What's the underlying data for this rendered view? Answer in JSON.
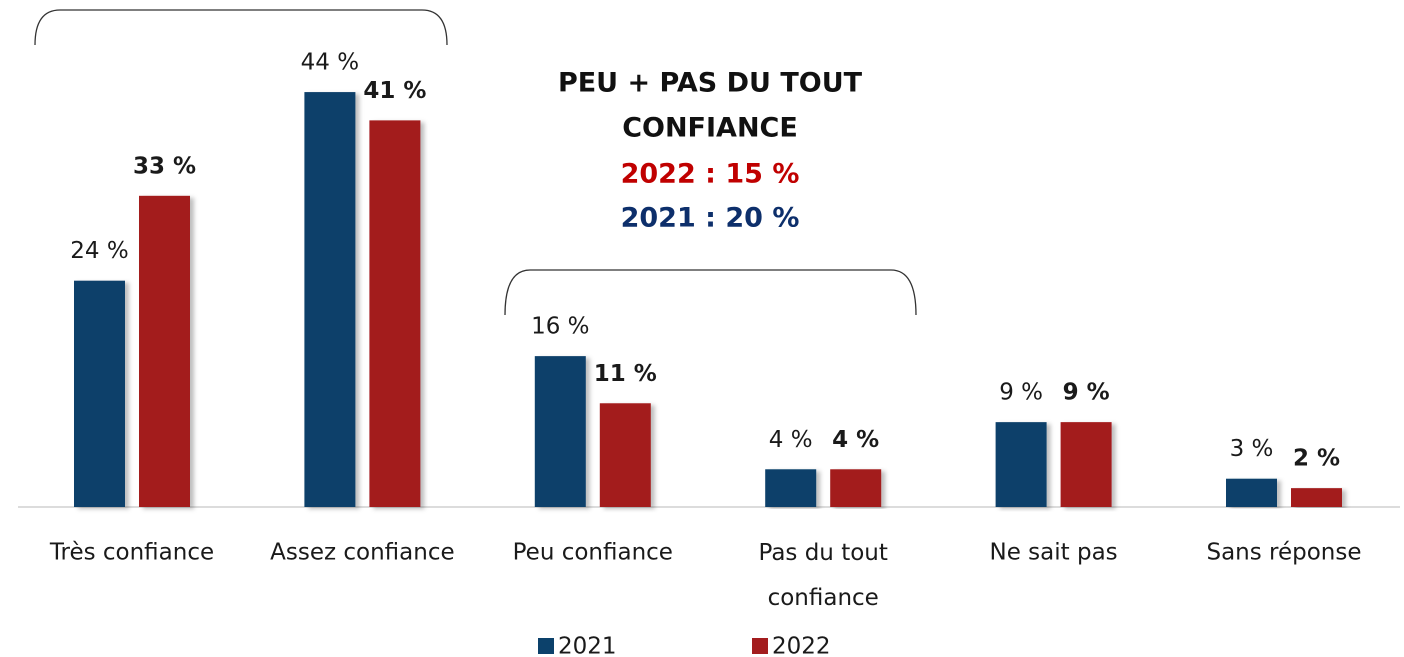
{
  "chart_data": {
    "type": "bar",
    "categories": [
      "Très confiance",
      "Assez confiance",
      "Peu confiance",
      "Pas du tout confiance",
      "Ne sait pas",
      "Sans réponse"
    ],
    "series": [
      {
        "name": "2021",
        "color": "#0c416b",
        "values": [
          24,
          44,
          16,
          4,
          9,
          3
        ],
        "value_labels": [
          "24 %",
          "44 %",
          "16 %",
          "4 %",
          "9 %",
          "3 %"
        ]
      },
      {
        "name": "2022",
        "color": "#a31c1e",
        "values": [
          33,
          41,
          11,
          4,
          9,
          2
        ],
        "value_labels": [
          "33 %",
          "41 %",
          "11 %",
          "4 %",
          "9 %",
          "2 %"
        ]
      }
    ],
    "annotations": [
      {
        "text": "PEU + PAS DU TOUT",
        "color": "#111111"
      },
      {
        "text": "CONFIANCE",
        "color": "#111111"
      },
      {
        "text": "2022 : 15 %",
        "color": "#c00000"
      },
      {
        "text": "2021 : 20 %",
        "color": "#0d2f6b"
      }
    ],
    "legend": "bottom"
  }
}
